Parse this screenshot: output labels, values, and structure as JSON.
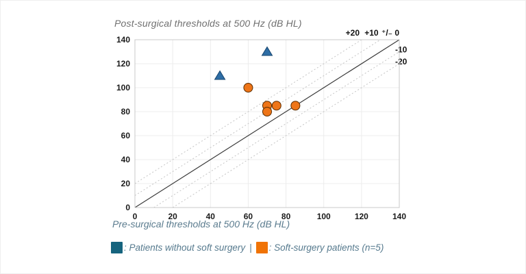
{
  "chart_data": {
    "type": "scatter",
    "title": "Post-surgical thresholds at 500 Hz (dB HL)",
    "xlabel": "Pre-surgical thresholds at 500 Hz (dB HL)",
    "ylabel": "Post-surgical thresholds at 500 Hz (dB HL)",
    "xlim": [
      0,
      140
    ],
    "ylim": [
      0,
      140
    ],
    "x_ticks": [
      0,
      20,
      40,
      60,
      80,
      100,
      120,
      140
    ],
    "y_ticks": [
      0,
      20,
      40,
      60,
      80,
      100,
      120,
      140
    ],
    "grid": true,
    "legend_position": "bottom",
    "series": [
      {
        "name": "Patients without soft surgery",
        "marker": "triangle",
        "color": "#2e6da5",
        "edge_color": "#17456e",
        "points": [
          [
            45,
            110
          ],
          [
            70,
            130
          ]
        ]
      },
      {
        "name": "Soft-surgery patients (n=5)",
        "marker": "circle",
        "color": "#ee7518",
        "edge_color": "#5c2d00",
        "points": [
          [
            60,
            100
          ],
          [
            70,
            85
          ],
          [
            75,
            85
          ],
          [
            70,
            80
          ],
          [
            85,
            85
          ]
        ]
      }
    ],
    "reference_lines": [
      {
        "offset": 20,
        "label": "+20",
        "style": "dotted"
      },
      {
        "offset": 10,
        "label": "+10",
        "style": "dotted"
      },
      {
        "offset": 0,
        "label": "⁺/₋ 0",
        "style": "solid"
      },
      {
        "offset": -10,
        "label": "-10",
        "style": "dotted"
      },
      {
        "offset": -20,
        "label": "-20",
        "style": "dotted"
      }
    ]
  },
  "legend": {
    "separator": "|",
    "entries": [
      {
        "swatch_color": "#16647e",
        "label": ": Patients without soft surgery"
      },
      {
        "swatch_color": "#f07306",
        "label": ": Soft-surgery patients (n=5)"
      }
    ]
  }
}
